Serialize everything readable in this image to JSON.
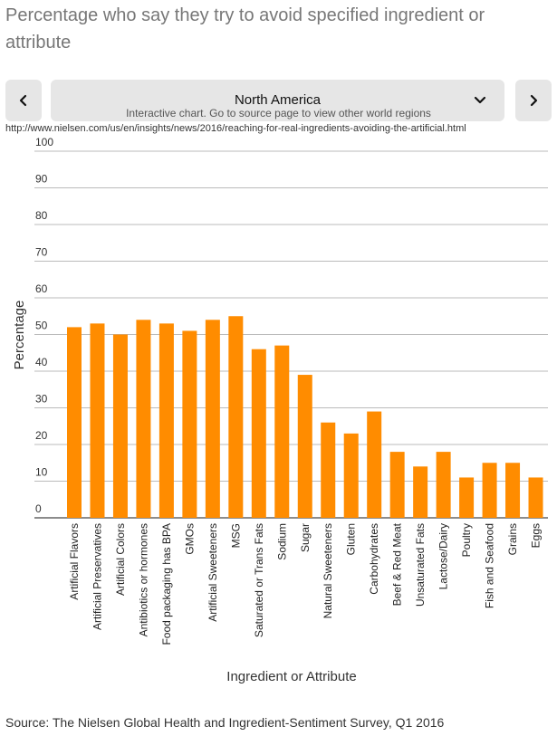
{
  "title": "Percentage who say they try to avoid specified ingredient or attribute",
  "nav": {
    "prev_icon": "chevron-left-icon",
    "next_icon": "chevron-right-icon",
    "region": "North America",
    "region_icon": "chevron-down-icon",
    "hint": "Interactive chart. Go to source page to view other world regions"
  },
  "source_url": "http://www.nielsen.com/us/en/insights/news/2016/reaching-for-real-ingredients-avoiding-the-artificial.html",
  "source_note": "Source: The Nielsen Global Health and Ingredient-Sentiment Survey, Q1 2016",
  "colors": {
    "bar": "#ff8c00",
    "grid": "#bbbbbb",
    "axis": "#666666"
  },
  "chart_data": {
    "type": "bar",
    "xlabel": "Ingredient or Attribute",
    "ylabel": "Percentage",
    "ylim": [
      0,
      100
    ],
    "yticks": [
      0,
      10,
      20,
      30,
      40,
      50,
      60,
      70,
      80,
      90,
      100
    ],
    "grid": true,
    "categories": [
      "Artificial Flavors",
      "Artificial Preservatives",
      "Artificial Colors",
      "Antibiotics or hormones",
      "Food packaging has BPA",
      "GMOs",
      "Artificial Sweeteners",
      "MSG",
      "Saturated or Trans Fats",
      "Sodium",
      "Sugar",
      "Natural Sweeteners",
      "Gluten",
      "Carbohydrates",
      "Beef & Red Meat",
      "Unsaturated Fats",
      "Lactose/Dairy",
      "Poultry",
      "Fish and Seafood",
      "Grains",
      "Eggs"
    ],
    "values": [
      52,
      53,
      50,
      54,
      53,
      51,
      54,
      55,
      46,
      47,
      39,
      26,
      23,
      29,
      18,
      14,
      18,
      11,
      15,
      15,
      11
    ]
  }
}
